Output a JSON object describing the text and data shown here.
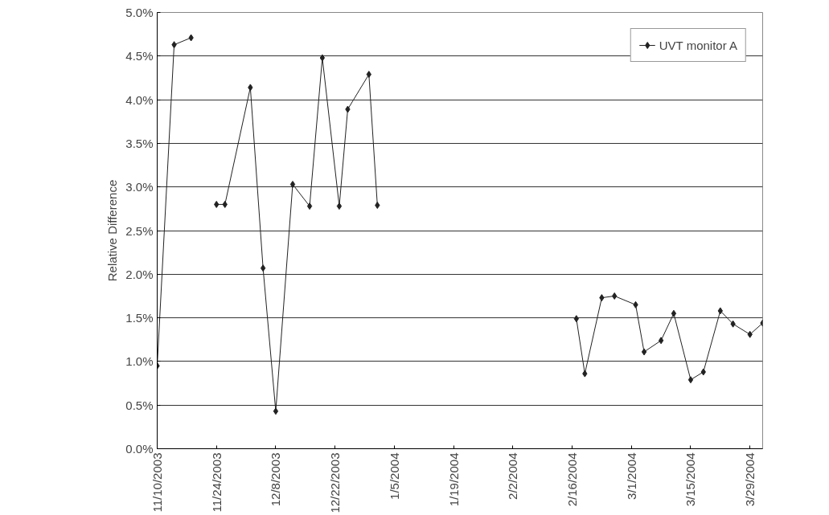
{
  "chart_data": {
    "type": "line",
    "ylabel": "Relative Difference",
    "x": [
      "2003-11-10",
      "2003-11-14",
      "2003-11-18",
      "2003-11-21",
      "2003-11-24",
      "2003-11-26",
      "2003-12-02",
      "2003-12-05",
      "2003-12-08",
      "2003-12-12",
      "2003-12-16",
      "2003-12-19",
      "2003-12-23",
      "2003-12-25",
      "2003-12-30",
      "2004-01-01",
      "2004-01-20",
      "2004-02-17",
      "2004-02-19",
      "2004-02-23",
      "2004-02-26",
      "2004-03-02",
      "2004-03-04",
      "2004-03-08",
      "2004-03-11",
      "2004-03-15",
      "2004-03-18",
      "2004-03-22",
      "2004-03-25",
      "2004-03-29",
      "2004-04-01"
    ],
    "series": [
      {
        "name": "UVT monitor A",
        "color": "#222222",
        "values": [
          0.95,
          4.63,
          4.71,
          null,
          2.8,
          2.8,
          4.14,
          2.07,
          0.43,
          3.03,
          2.78,
          4.48,
          2.78,
          3.89,
          4.29,
          2.79,
          null,
          1.49,
          0.86,
          1.73,
          1.75,
          1.65,
          1.11,
          1.24,
          1.55,
          0.79,
          0.88,
          1.58,
          1.43,
          1.31,
          1.44
        ]
      }
    ],
    "xlim": [
      "2003-11-10",
      "2004-04-01"
    ],
    "xticks": [
      {
        "value": "2003-11-10",
        "label": "11/10/2003"
      },
      {
        "value": "2003-11-24",
        "label": "11/24/2003"
      },
      {
        "value": "2003-12-08",
        "label": "12/8/2003"
      },
      {
        "value": "2003-12-22",
        "label": "12/22/2003"
      },
      {
        "value": "2004-01-05",
        "label": "1/5/2004"
      },
      {
        "value": "2004-01-19",
        "label": "1/19/2004"
      },
      {
        "value": "2004-02-02",
        "label": "2/2/2004"
      },
      {
        "value": "2004-02-16",
        "label": "2/16/2004"
      },
      {
        "value": "2004-03-01",
        "label": "3/1/2004"
      },
      {
        "value": "2004-03-15",
        "label": "3/15/2004"
      },
      {
        "value": "2004-03-29",
        "label": "3/29/2004"
      }
    ],
    "ylim": [
      0,
      5
    ],
    "yticks": [
      {
        "value": 0,
        "label": "0.0%"
      },
      {
        "value": 0.5,
        "label": "0.5%"
      },
      {
        "value": 1,
        "label": "1.0%"
      },
      {
        "value": 1.5,
        "label": "1.5%"
      },
      {
        "value": 2,
        "label": "2.0%"
      },
      {
        "value": 2.5,
        "label": "2.5%"
      },
      {
        "value": 3,
        "label": "3.0%"
      },
      {
        "value": 3.5,
        "label": "3.5%"
      },
      {
        "value": 4,
        "label": "4.0%"
      },
      {
        "value": 4.5,
        "label": "4.5%"
      },
      {
        "value": 5,
        "label": "5.0%"
      }
    ],
    "grid": "y",
    "legend": "top right",
    "marker": "diamond",
    "line_style": "solid"
  }
}
